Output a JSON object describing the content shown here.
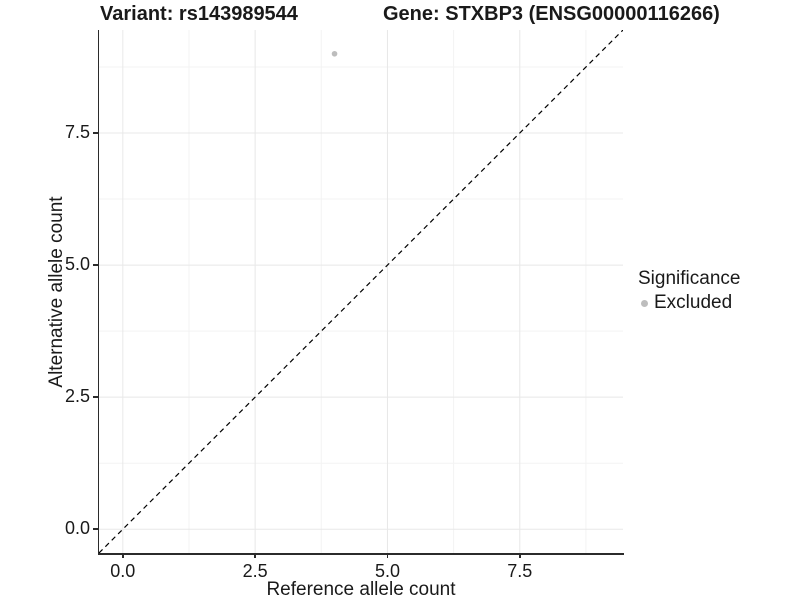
{
  "titles": {
    "variant": "Variant: rs143989544",
    "gene": "Gene: STXBP3 (ENSG00000116266)"
  },
  "chart_data": {
    "type": "scatter",
    "title": "Variant: rs143989544   Gene: STXBP3 (ENSG00000116266)",
    "xlabel": "Reference allele count",
    "ylabel": "Alternative allele count",
    "xlim": [
      -0.45,
      9.45
    ],
    "ylim": [
      -0.45,
      9.45
    ],
    "x_ticks": [
      0,
      2.5,
      5,
      7.5
    ],
    "x_tick_labels": [
      "0.0",
      "2.5",
      "5.0",
      "7.5"
    ],
    "y_ticks": [
      0,
      2.5,
      5,
      7.5
    ],
    "y_tick_labels": [
      "0.0",
      "2.5",
      "5.0",
      "7.5"
    ],
    "x_minor_gridlines": [
      1.25,
      3.75,
      6.25,
      8.75
    ],
    "y_minor_gridlines": [
      1.25,
      3.75,
      6.25,
      8.75
    ],
    "grid": true,
    "points": [
      {
        "x": 4,
        "y": 9,
        "series": "Excluded"
      }
    ],
    "identity_line": {
      "slope": 1,
      "intercept": 0,
      "style": "dashed",
      "color": "#000000"
    },
    "legend": {
      "title": "Significance",
      "position": "right",
      "entries": [
        {
          "label": "Excluded",
          "color": "#bdbdbd"
        }
      ]
    },
    "colors": {
      "point": "#bdbdbd",
      "grid_major": "#e8e8e8",
      "grid_minor": "#f3f3f3",
      "axis": "#2b2b2b",
      "background": "#ffffff"
    }
  }
}
